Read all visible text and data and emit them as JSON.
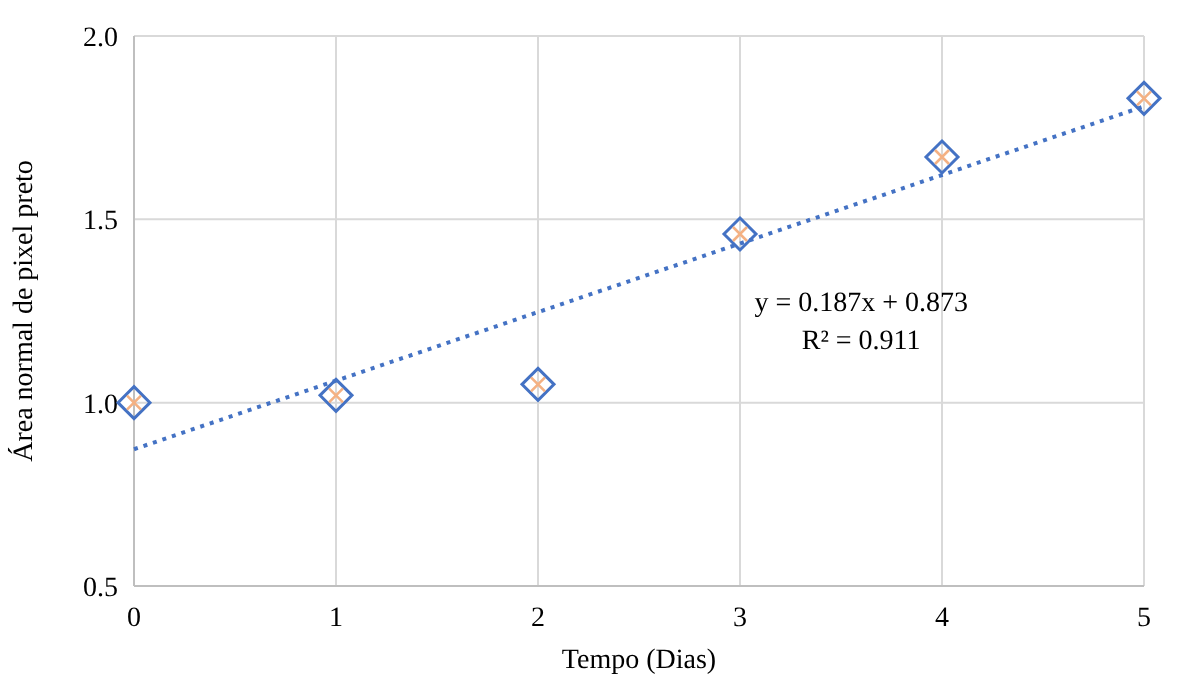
{
  "chart_data": {
    "type": "scatter",
    "xlabel": "Tempo (Dias)",
    "ylabel": "Área normal de pixel preto",
    "x": [
      0,
      1,
      2,
      3,
      4,
      5
    ],
    "series": [
      {
        "color": "#4472c4",
        "marker": "diamond",
        "values": [
          1.0,
          1.02,
          1.05,
          1.46,
          1.67,
          1.83
        ]
      },
      {
        "color": "#f4b183",
        "marker": "cross",
        "values": [
          1.0,
          1.02,
          1.05,
          1.46,
          1.67,
          1.83
        ]
      },
      {
        "type": "line",
        "color": "#4472c4",
        "line_style": "dotted",
        "x": [
          0,
          5
        ],
        "values": [
          0.873,
          1.808
        ]
      }
    ],
    "annotations": [
      "y = 0.187x + 0.873",
      "R² = 0.911"
    ],
    "xlim": [
      0,
      5
    ],
    "xticks": [
      0,
      1,
      2,
      3,
      4,
      5
    ],
    "ylim": [
      0.5,
      2
    ],
    "yticks": [
      {
        "value": 0.5,
        "label": "0.5"
      },
      {
        "value": 1,
        "label": "1.0"
      },
      {
        "value": 1.5,
        "label": "1.5"
      },
      {
        "value": 2,
        "label": "2.0"
      }
    ],
    "grid": true
  }
}
